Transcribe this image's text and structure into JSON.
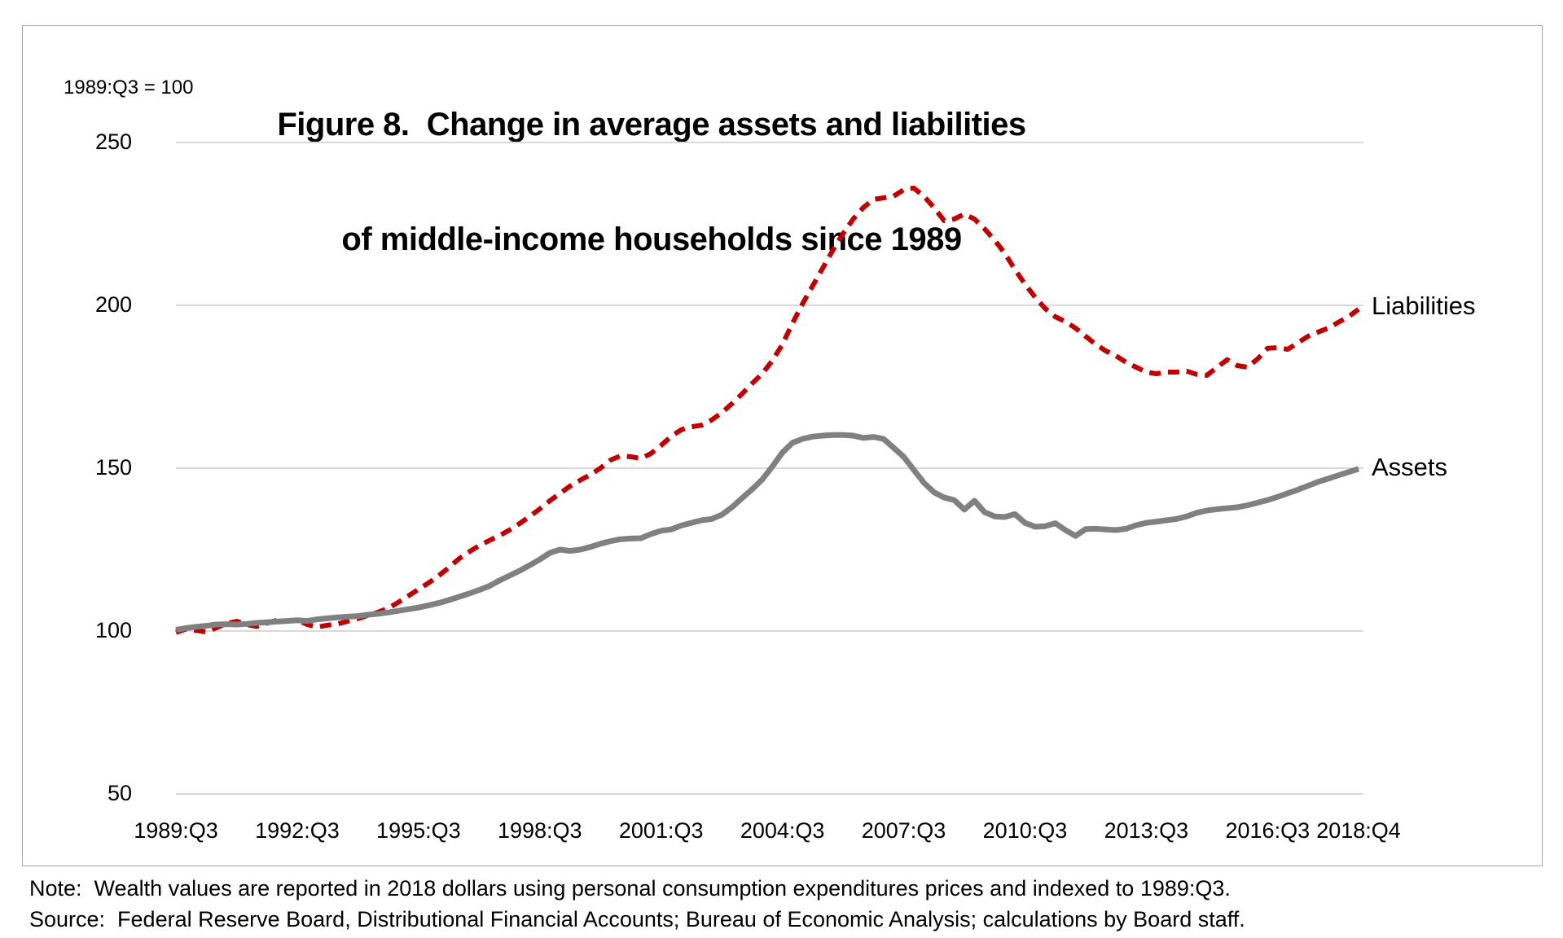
{
  "figure": {
    "title_line1": "Figure 8.  Change in average assets and liabilities",
    "title_line2": "of middle-income households since 1989",
    "axis_note": "1989:Q3 = 100",
    "note": "Note:  Wealth values are reported in 2018 dollars using personal consumption expenditures prices and indexed to 1989:Q3.",
    "source": "Source:  Federal Reserve Board, Distributional Financial Accounts; Bureau of Economic Analysis; calculations by Board staff."
  },
  "colors": {
    "liabilities": "#C00000",
    "assets": "#808080",
    "gridline": "#D9D9D9",
    "border": "#A6A6A6",
    "text": "#000000"
  },
  "chart_data": {
    "type": "line",
    "title": "Figure 8. Change in average assets and liabilities of middle-income households since 1989",
    "index_note": "1989:Q3 = 100",
    "frequency": "quarterly",
    "x_start": "1989:Q3",
    "x_end": "2018:Q4",
    "n_points": 118,
    "ylim": [
      50,
      250
    ],
    "y_ticks": [
      50,
      100,
      150,
      200,
      250
    ],
    "grid": "horizontal only",
    "legend_position": "right of line ends",
    "x_tick_labels": [
      "1989:Q3",
      "1992:Q3",
      "1995:Q3",
      "1998:Q3",
      "2001:Q3",
      "2004:Q3",
      "2007:Q3",
      "2010:Q3",
      "2013:Q3",
      "2016:Q3",
      "2018:Q4"
    ],
    "x_tick_quarters": [
      0,
      12,
      24,
      36,
      48,
      60,
      72,
      84,
      96,
      108,
      117
    ],
    "series": [
      {
        "name": "Liabilities",
        "color": "#C00000",
        "style": "dashed",
        "values": [
          99.6,
          100.6,
          100.2,
          99.7,
          101.0,
          102.3,
          103.0,
          102.0,
          101.4,
          102.4,
          103.3,
          103.0,
          103.4,
          102.0,
          101.2,
          101.8,
          102.2,
          103.0,
          103.8,
          104.8,
          105.8,
          107.0,
          108.8,
          110.8,
          112.8,
          114.8,
          117.0,
          119.5,
          122.2,
          124.3,
          126.2,
          127.8,
          129.3,
          131.0,
          133.0,
          135.2,
          137.5,
          140.0,
          142.3,
          144.5,
          146.3,
          148.0,
          150.0,
          152.5,
          153.8,
          153.5,
          153.0,
          154.5,
          157.0,
          159.8,
          161.8,
          162.7,
          163.2,
          164.8,
          167.0,
          169.8,
          172.8,
          176.0,
          179.0,
          183.0,
          188.0,
          194.5,
          200.5,
          206.0,
          211.5,
          217.0,
          222.0,
          226.5,
          230.0,
          232.5,
          233.0,
          233.5,
          235.5,
          236.0,
          233.5,
          230.0,
          226.0,
          226.5,
          228.0,
          226.5,
          223.5,
          220.0,
          216.0,
          211.0,
          206.5,
          202.5,
          199.0,
          196.5,
          195.0,
          193.0,
          190.5,
          188.0,
          186.0,
          184.5,
          182.5,
          181.0,
          179.5,
          179.0,
          179.5,
          179.5,
          179.8,
          178.8,
          178.5,
          181.0,
          183.3,
          181.5,
          181.0,
          183.5,
          186.8,
          187.0,
          186.5,
          188.5,
          190.5,
          191.8,
          193.0,
          194.8,
          196.5,
          198.8
        ]
      },
      {
        "name": "Assets",
        "color": "#808080",
        "style": "solid",
        "values": [
          100.4,
          100.9,
          101.3,
          101.6,
          102.0,
          102.1,
          102.0,
          102.2,
          102.5,
          102.7,
          102.9,
          103.1,
          103.3,
          103.1,
          103.6,
          103.9,
          104.2,
          104.4,
          104.6,
          105.0,
          105.3,
          105.7,
          106.2,
          106.7,
          107.2,
          107.9,
          108.6,
          109.5,
          110.5,
          111.5,
          112.6,
          113.8,
          115.5,
          117.0,
          118.5,
          120.2,
          122.0,
          124.0,
          125.0,
          124.6,
          125.0,
          125.8,
          126.8,
          127.6,
          128.2,
          128.4,
          128.5,
          129.8,
          130.8,
          131.2,
          132.4,
          133.2,
          134.0,
          134.4,
          135.7,
          138.0,
          140.8,
          143.5,
          146.5,
          150.5,
          154.8,
          157.8,
          159.0,
          159.7,
          160.0,
          160.2,
          160.2,
          160.0,
          159.3,
          159.6,
          159.0,
          156.3,
          153.5,
          149.5,
          145.5,
          142.6,
          141.0,
          140.2,
          137.3,
          140.0,
          136.5,
          135.2,
          135.0,
          135.9,
          133.2,
          132.0,
          132.2,
          133.1,
          131.0,
          129.2,
          131.3,
          131.4,
          131.2,
          131.0,
          131.4,
          132.5,
          133.2,
          133.6,
          134.0,
          134.4,
          135.2,
          136.3,
          137.0,
          137.4,
          137.7,
          138.0,
          138.6,
          139.4,
          140.2,
          141.2,
          142.3,
          143.4,
          144.6,
          145.8,
          146.8,
          147.8,
          148.8,
          149.8
        ]
      }
    ]
  }
}
